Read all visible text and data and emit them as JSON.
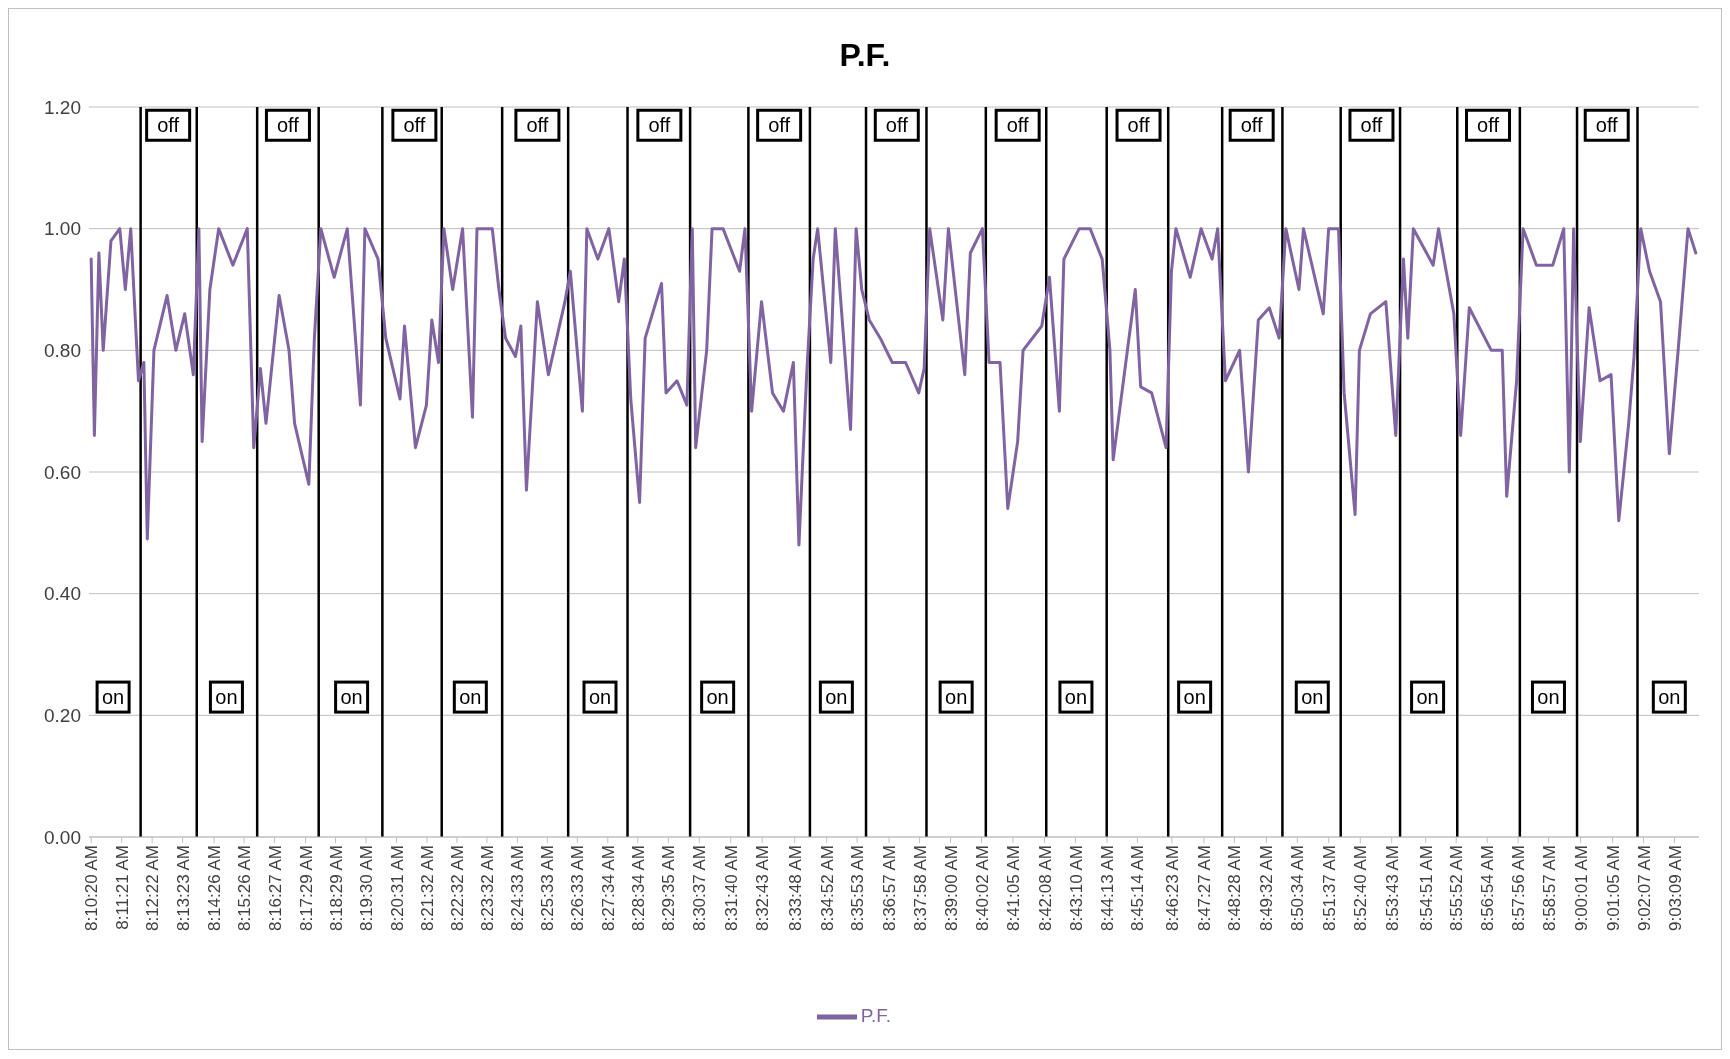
{
  "chart_data": {
    "type": "line",
    "title": "P.F.",
    "xlim": [
      8.171,
      9.0661
    ],
    "xticks": [
      {
        "value": 8.17222,
        "label": "8:10:20 AM"
      },
      {
        "value": 8.18917,
        "label": "8:11:21 AM"
      },
      {
        "value": 8.20611,
        "label": "8:12:22 AM"
      },
      {
        "value": 8.22306,
        "label": "8:13:23 AM"
      },
      {
        "value": 8.24056,
        "label": "8:14:26 AM"
      },
      {
        "value": 8.25722,
        "label": "8:15:26 AM"
      },
      {
        "value": 8.27417,
        "label": "8:16:27 AM"
      },
      {
        "value": 8.29139,
        "label": "8:17:29 AM"
      },
      {
        "value": 8.30806,
        "label": "8:18:29 AM"
      },
      {
        "value": 8.325,
        "label": "8:19:30 AM"
      },
      {
        "value": 8.34194,
        "label": "8:20:31 AM"
      },
      {
        "value": 8.35889,
        "label": "8:21:32 AM"
      },
      {
        "value": 8.37556,
        "label": "8:22:32 AM"
      },
      {
        "value": 8.39222,
        "label": "8:23:32 AM"
      },
      {
        "value": 8.40917,
        "label": "8:24:33 AM"
      },
      {
        "value": 8.42583,
        "label": "8:25:33 AM"
      },
      {
        "value": 8.4425,
        "label": "8:26:33 AM"
      },
      {
        "value": 8.45944,
        "label": "8:27:34 AM"
      },
      {
        "value": 8.47611,
        "label": "8:28:34 AM"
      },
      {
        "value": 8.49306,
        "label": "8:29:35 AM"
      },
      {
        "value": 8.51028,
        "label": "8:30:37 AM"
      },
      {
        "value": 8.52778,
        "label": "8:31:40 AM"
      },
      {
        "value": 8.54528,
        "label": "8:32:43 AM"
      },
      {
        "value": 8.56333,
        "label": "8:33:48 AM"
      },
      {
        "value": 8.58111,
        "label": "8:34:52 AM"
      },
      {
        "value": 8.59806,
        "label": "8:35:53 AM"
      },
      {
        "value": 8.61583,
        "label": "8:36:57 AM"
      },
      {
        "value": 8.63278,
        "label": "8:37:58 AM"
      },
      {
        "value": 8.65,
        "label": "8:39:00 AM"
      },
      {
        "value": 8.66722,
        "label": "8:40:02 AM"
      },
      {
        "value": 8.68472,
        "label": "8:41:05 AM"
      },
      {
        "value": 8.70222,
        "label": "8:42:08 AM"
      },
      {
        "value": 8.71944,
        "label": "8:43:10 AM"
      },
      {
        "value": 8.73694,
        "label": "8:44:13 AM"
      },
      {
        "value": 8.75389,
        "label": "8:45:14 AM"
      },
      {
        "value": 8.77306,
        "label": "8:46:23 AM"
      },
      {
        "value": 8.79083,
        "label": "8:47:27 AM"
      },
      {
        "value": 8.80778,
        "label": "8:48:28 AM"
      },
      {
        "value": 8.82556,
        "label": "8:49:32 AM"
      },
      {
        "value": 8.84278,
        "label": "8:50:34 AM"
      },
      {
        "value": 8.86028,
        "label": "8:51:37 AM"
      },
      {
        "value": 8.87778,
        "label": "8:52:40 AM"
      },
      {
        "value": 8.89528,
        "label": "8:53:43 AM"
      },
      {
        "value": 8.91417,
        "label": "8:54:51 AM"
      },
      {
        "value": 8.93111,
        "label": "8:55:52 AM"
      },
      {
        "value": 8.94833,
        "label": "8:56:54 AM"
      },
      {
        "value": 8.96556,
        "label": "8:57:56 AM"
      },
      {
        "value": 8.9825,
        "label": "8:58:57 AM"
      },
      {
        "value": 9.00028,
        "label": "9:00:01 AM"
      },
      {
        "value": 9.01806,
        "label": "9:01:05 AM"
      },
      {
        "value": 9.03528,
        "label": "9:02:07 AM"
      },
      {
        "value": 9.0525,
        "label": "9:03:09 AM"
      }
    ],
    "ylim": [
      0,
      1.2
    ],
    "yticks": [
      {
        "value": 0,
        "label": "0.00"
      },
      {
        "value": 0.2,
        "label": "0.20"
      },
      {
        "value": 0.4,
        "label": "0.40"
      },
      {
        "value": 0.6,
        "label": "0.60"
      },
      {
        "value": 0.8,
        "label": "0.80"
      },
      {
        "value": 1,
        "label": "1.00"
      },
      {
        "value": 1.2,
        "label": "1.20"
      }
    ],
    "grid": "y",
    "legend": "bottom",
    "marker": "none",
    "line_style": "solid",
    "series": [
      {
        "name": "P.F.",
        "color": "#8064a2",
        "x": [
          8.1722,
          8.174,
          8.1765,
          8.1789,
          8.1832,
          8.1881,
          8.1912,
          8.1942,
          8.1985,
          8.2015,
          8.2034,
          8.2071,
          8.2144,
          8.2193,
          8.2242,
          8.229,
          8.2321,
          8.2339,
          8.2382,
          8.2431,
          8.251,
          8.259,
          8.2626,
          8.2663,
          8.2694,
          8.2767,
          8.2822,
          8.2853,
          8.2932,
          8.2963,
          8.2999,
          8.3073,
          8.3146,
          8.3219,
          8.3244,
          8.3317,
          8.336,
          8.3439,
          8.3464,
          8.3525,
          8.3586,
          8.3616,
          8.3653,
          8.3683,
          8.3732,
          8.3787,
          8.3842,
          8.3867,
          8.3952,
          8.3989,
          8.4026,
          8.4081,
          8.4111,
          8.4142,
          8.4203,
          8.4264,
          8.4356,
          8.4386,
          8.4453,
          8.4478,
          8.4539,
          8.46,
          8.4655,
          8.4686,
          8.4722,
          8.4771,
          8.4802,
          8.4893,
          8.4918,
          8.4979,
          8.5034,
          8.5064,
          8.5083,
          8.5144,
          8.5174,
          8.5235,
          8.5327,
          8.5357,
          8.5394,
          8.5449,
          8.551,
          8.5571,
          8.5626,
          8.5657,
          8.57,
          8.5736,
          8.5761,
          8.5834,
          8.5859,
          8.5944,
          8.5975,
          8.6006,
          8.6048,
          8.6109,
          8.6176,
          8.625,
          8.6323,
          8.6353,
          8.6384,
          8.6457,
          8.6488,
          8.6579,
          8.661,
          8.6677,
          8.6714,
          8.6775,
          8.6818,
          8.6873,
          8.6903,
          8.7007,
          8.705,
          8.7105,
          8.713,
          8.7215,
          8.7276,
          8.7343,
          8.7386,
          8.7404,
          8.7527,
          8.7557,
          8.7618,
          8.7698,
          8.7728,
          8.7753,
          8.7832,
          8.7893,
          8.7954,
          8.7985,
          8.8028,
          8.8107,
          8.8156,
          8.8211,
          8.8272,
          8.8327,
          8.8364,
          8.8437,
          8.8462,
          8.8572,
          8.8602,
          8.8657,
          8.8688,
          8.8749,
          8.8773,
          8.8834,
          8.892,
          8.8975,
          8.9018,
          8.9042,
          8.9073,
          8.9183,
          8.9213,
          8.9298,
          8.9336,
          8.9384,
          8.9506,
          8.9567,
          8.9592,
          8.9647,
          8.9683,
          8.9757,
          8.9848,
          8.9909,
          8.994,
          8.9964,
          9.0001,
          9.005,
          9.0111,
          9.0172,
          9.0215,
          9.027,
          9.03,
          9.0337,
          9.0386,
          9.0447,
          9.0496,
          9.0545,
          9.06,
          9.0643
        ],
        "values": [
          0.95,
          0.66,
          0.96,
          0.8,
          0.98,
          1.0,
          0.9,
          1.0,
          0.75,
          0.78,
          0.49,
          0.8,
          0.89,
          0.8,
          0.86,
          0.76,
          1.0,
          0.65,
          0.9,
          1.0,
          0.94,
          1.0,
          0.64,
          0.77,
          0.68,
          0.89,
          0.8,
          0.68,
          0.58,
          0.82,
          1.0,
          0.92,
          1.0,
          0.71,
          1.0,
          0.95,
          0.82,
          0.72,
          0.84,
          0.64,
          0.71,
          0.85,
          0.78,
          1.0,
          0.9,
          1.0,
          0.69,
          1.0,
          1.0,
          0.9,
          0.82,
          0.79,
          0.84,
          0.57,
          0.88,
          0.76,
          0.88,
          0.93,
          0.7,
          1.0,
          0.95,
          1.0,
          0.88,
          0.95,
          0.72,
          0.55,
          0.82,
          0.91,
          0.73,
          0.75,
          0.71,
          1.0,
          0.64,
          0.8,
          1.0,
          1.0,
          0.93,
          1.0,
          0.7,
          0.88,
          0.73,
          0.7,
          0.78,
          0.48,
          0.76,
          0.95,
          1.0,
          0.78,
          1.0,
          0.67,
          1.0,
          0.9,
          0.85,
          0.82,
          0.78,
          0.78,
          0.73,
          0.77,
          1.0,
          0.85,
          1.0,
          0.76,
          0.96,
          1.0,
          0.78,
          0.78,
          0.54,
          0.65,
          0.8,
          0.84,
          0.92,
          0.7,
          0.95,
          1.0,
          1.0,
          0.95,
          0.8,
          0.62,
          0.9,
          0.74,
          0.73,
          0.64,
          0.93,
          1.0,
          0.92,
          1.0,
          0.95,
          1.0,
          0.75,
          0.8,
          0.6,
          0.85,
          0.87,
          0.82,
          1.0,
          0.9,
          1.0,
          0.86,
          1.0,
          1.0,
          0.73,
          0.53,
          0.8,
          0.86,
          0.88,
          0.66,
          0.95,
          0.82,
          1.0,
          0.94,
          1.0,
          0.86,
          0.66,
          0.87,
          0.8,
          0.8,
          0.56,
          0.75,
          1.0,
          0.94,
          0.94,
          1.0,
          0.6,
          1.0,
          0.65,
          0.87,
          0.75,
          0.76,
          0.52,
          0.68,
          0.79,
          1.0,
          0.93,
          0.88,
          0.63,
          0.8,
          1.0,
          0.96
        ]
      }
    ],
    "ref_lines": [
      {
        "axis": "x",
        "value": 8.1997,
        "color": "#000000"
      },
      {
        "axis": "x",
        "value": 8.2309,
        "color": "#000000"
      },
      {
        "axis": "x",
        "value": 8.2645,
        "color": "#000000"
      },
      {
        "axis": "x",
        "value": 8.2987,
        "color": "#000000"
      },
      {
        "axis": "x",
        "value": 8.3341,
        "color": "#000000"
      },
      {
        "axis": "x",
        "value": 8.3671,
        "color": "#000000"
      },
      {
        "axis": "x",
        "value": 8.4007,
        "color": "#000000"
      },
      {
        "axis": "x",
        "value": 8.4374,
        "color": "#000000"
      },
      {
        "axis": "x",
        "value": 8.4704,
        "color": "#000000"
      },
      {
        "axis": "x",
        "value": 8.5052,
        "color": "#000000"
      },
      {
        "axis": "x",
        "value": 8.5376,
        "color": "#000000"
      },
      {
        "axis": "x",
        "value": 8.5718,
        "color": "#000000"
      },
      {
        "axis": "x",
        "value": 8.603,
        "color": "#000000"
      },
      {
        "axis": "x",
        "value": 8.6366,
        "color": "#000000"
      },
      {
        "axis": "x",
        "value": 8.6696,
        "color": "#000000"
      },
      {
        "axis": "x",
        "value": 8.7032,
        "color": "#000000"
      },
      {
        "axis": "x",
        "value": 8.7368,
        "color": "#000000"
      },
      {
        "axis": "x",
        "value": 8.771,
        "color": "#000000"
      },
      {
        "axis": "x",
        "value": 8.801,
        "color": "#000000"
      },
      {
        "axis": "x",
        "value": 8.8345,
        "color": "#000000"
      },
      {
        "axis": "x",
        "value": 8.8669,
        "color": "#000000"
      },
      {
        "axis": "x",
        "value": 8.8999,
        "color": "#000000"
      },
      {
        "axis": "x",
        "value": 8.9317,
        "color": "#000000"
      },
      {
        "axis": "x",
        "value": 8.9665,
        "color": "#000000"
      },
      {
        "axis": "x",
        "value": 8.9983,
        "color": "#000000"
      },
      {
        "axis": "x",
        "value": 9.0319,
        "color": "#000000"
      }
    ],
    "annotations": [
      {
        "text": "off",
        "x": 8.215,
        "y": 1.17
      },
      {
        "text": "off",
        "x": 8.2816,
        "y": 1.17
      },
      {
        "text": "off",
        "x": 8.3519,
        "y": 1.17
      },
      {
        "text": "off",
        "x": 8.4203,
        "y": 1.17
      },
      {
        "text": "off",
        "x": 8.4881,
        "y": 1.17
      },
      {
        "text": "off",
        "x": 8.5547,
        "y": 1.17
      },
      {
        "text": "off",
        "x": 8.6201,
        "y": 1.17
      },
      {
        "text": "off",
        "x": 8.6873,
        "y": 1.17
      },
      {
        "text": "off",
        "x": 8.7545,
        "y": 1.17
      },
      {
        "text": "off",
        "x": 8.8174,
        "y": 1.17
      },
      {
        "text": "off",
        "x": 8.884,
        "y": 1.17
      },
      {
        "text": "off",
        "x": 8.9488,
        "y": 1.17
      },
      {
        "text": "off",
        "x": 9.0148,
        "y": 1.17
      },
      {
        "text": "on",
        "x": 8.1844,
        "y": 0.23
      },
      {
        "text": "on",
        "x": 8.2474,
        "y": 0.23
      },
      {
        "text": "on",
        "x": 8.317,
        "y": 0.23
      },
      {
        "text": "on",
        "x": 8.383,
        "y": 0.23
      },
      {
        "text": "on",
        "x": 8.4551,
        "y": 0.23
      },
      {
        "text": "on",
        "x": 8.5205,
        "y": 0.23
      },
      {
        "text": "on",
        "x": 8.5865,
        "y": 0.23
      },
      {
        "text": "on",
        "x": 8.6531,
        "y": 0.23
      },
      {
        "text": "on",
        "x": 8.7197,
        "y": 0.23
      },
      {
        "text": "on",
        "x": 8.7857,
        "y": 0.23
      },
      {
        "text": "on",
        "x": 8.8511,
        "y": 0.23
      },
      {
        "text": "on",
        "x": 8.9152,
        "y": 0.23
      },
      {
        "text": "on",
        "x": 8.9824,
        "y": 0.23
      },
      {
        "text": "on",
        "x": 9.0496,
        "y": 0.23
      }
    ]
  }
}
